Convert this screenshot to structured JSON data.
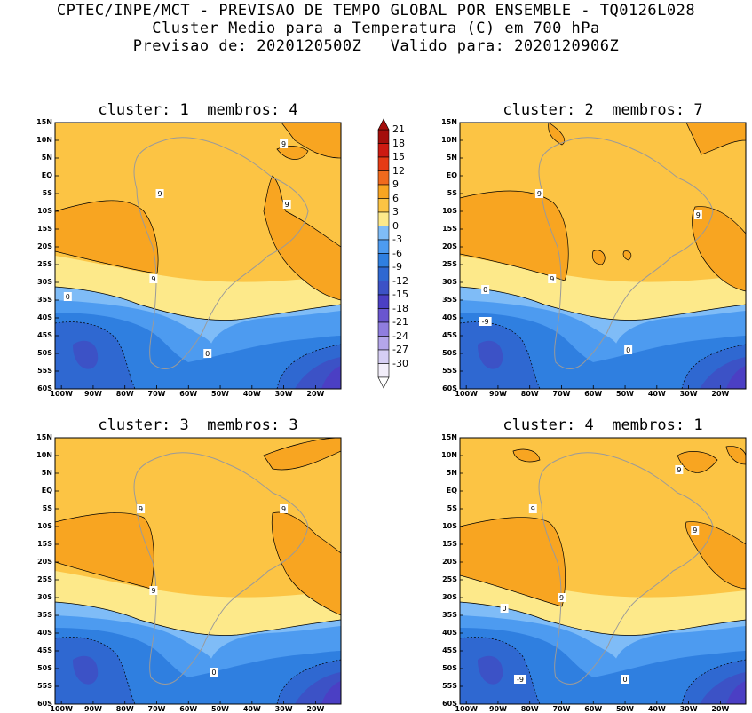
{
  "header": {
    "line1": "CPTEC/INPE/MCT - PREVISAO DE TEMPO GLOBAL POR ENSEMBLE - TQ0126L028",
    "line2": "Cluster Medio para a Temperatura (C) em 700 hPa",
    "line3": "Previsao de: 2020120500Z   Valido para: 2020120906Z"
  },
  "colors": {
    "levels": [
      -30,
      -27,
      -24,
      -21,
      -18,
      -15,
      -12,
      -9,
      -6,
      -3,
      0,
      3,
      6,
      9,
      12,
      15,
      18,
      21
    ],
    "palette": [
      "#f2eefa",
      "#d6cef4",
      "#b4a6ea",
      "#8f7ddf",
      "#6a56cf",
      "#4b3fc4",
      "#3c52c6",
      "#2f68d1",
      "#2f7fe0",
      "#4d9bf0",
      "#7fbcf7",
      "#fde98a",
      "#fcc444",
      "#f8a521",
      "#f06a1d",
      "#e53b15",
      "#cd1a12",
      "#a40e0b"
    ],
    "contour": "#000000",
    "coast": "#9a9a9a"
  },
  "colorbar": {
    "labels": [
      "21",
      "18",
      "15",
      "12",
      "9",
      "6",
      "3",
      "0",
      "-3",
      "-6",
      "-9",
      "-12",
      "-15",
      "-18",
      "-21",
      "-24",
      "-27",
      "-30"
    ]
  },
  "chart_data": [
    {
      "type": "heatmap",
      "title": "cluster: 1  membros: 4",
      "x_ticks": [
        "100W",
        "90W",
        "80W",
        "70W",
        "60W",
        "50W",
        "40W",
        "30W",
        "20W"
      ],
      "y_ticks": [
        "15N",
        "10N",
        "5N",
        "EQ",
        "5S",
        "10S",
        "15S",
        "20S",
        "25S",
        "30S",
        "35S",
        "40S",
        "45S",
        "50S",
        "55S",
        "60S"
      ],
      "x_range_deg_lon": [
        -102,
        -12
      ],
      "y_range_deg_lat": [
        -60,
        15
      ],
      "contour_labels": [
        {
          "text": "9",
          "lon": -69,
          "lat": -5
        },
        {
          "text": "9",
          "lon": -30,
          "lat": 9
        },
        {
          "text": "9",
          "lon": -29,
          "lat": -8
        },
        {
          "text": "9",
          "lon": -71,
          "lat": -29
        },
        {
          "text": "0",
          "lon": -98,
          "lat": -34
        },
        {
          "text": "0",
          "lon": -54,
          "lat": -50
        }
      ]
    },
    {
      "type": "heatmap",
      "title": "cluster: 2  membros: 7",
      "x_ticks": [
        "100W",
        "90W",
        "80W",
        "70W",
        "60W",
        "50W",
        "40W",
        "30W",
        "20W"
      ],
      "y_ticks": [
        "15N",
        "10N",
        "5N",
        "EQ",
        "5S",
        "10S",
        "15S",
        "20S",
        "25S",
        "30S",
        "35S",
        "40S",
        "45S",
        "50S",
        "55S",
        "60S"
      ],
      "x_range_deg_lon": [
        -102,
        -12
      ],
      "y_range_deg_lat": [
        -60,
        15
      ],
      "contour_labels": [
        {
          "text": "9",
          "lon": -77,
          "lat": -5
        },
        {
          "text": "9",
          "lon": -27,
          "lat": -11
        },
        {
          "text": "9",
          "lon": -73,
          "lat": -29
        },
        {
          "text": "0",
          "lon": -94,
          "lat": -32
        },
        {
          "text": "-9",
          "lon": -94,
          "lat": -41
        },
        {
          "text": "0",
          "lon": -49,
          "lat": -49
        }
      ]
    },
    {
      "type": "heatmap",
      "title": "cluster: 3  membros: 3",
      "x_ticks": [
        "100W",
        "90W",
        "80W",
        "70W",
        "60W",
        "50W",
        "40W",
        "30W",
        "20W"
      ],
      "y_ticks": [
        "15N",
        "10N",
        "5N",
        "EQ",
        "5S",
        "10S",
        "15S",
        "20S",
        "25S",
        "30S",
        "35S",
        "40S",
        "45S",
        "50S",
        "55S",
        "60S"
      ],
      "x_range_deg_lon": [
        -102,
        -12
      ],
      "y_range_deg_lat": [
        -60,
        15
      ],
      "contour_labels": [
        {
          "text": "9",
          "lon": -75,
          "lat": -5
        },
        {
          "text": "9",
          "lon": -30,
          "lat": -5
        },
        {
          "text": "9",
          "lon": -71,
          "lat": -28
        },
        {
          "text": "0",
          "lon": -52,
          "lat": -51
        }
      ]
    },
    {
      "type": "heatmap",
      "title": "cluster: 4  membros: 1",
      "x_ticks": [
        "100W",
        "90W",
        "80W",
        "70W",
        "60W",
        "50W",
        "40W",
        "30W",
        "20W"
      ],
      "y_ticks": [
        "15N",
        "10N",
        "5N",
        "EQ",
        "5S",
        "10S",
        "15S",
        "20S",
        "25S",
        "30S",
        "35S",
        "40S",
        "45S",
        "50S",
        "55S",
        "60S"
      ],
      "x_range_deg_lon": [
        -102,
        -12
      ],
      "y_range_deg_lat": [
        -60,
        15
      ],
      "contour_labels": [
        {
          "text": "9",
          "lon": -33,
          "lat": 6
        },
        {
          "text": "9",
          "lon": -79,
          "lat": -5
        },
        {
          "text": "9",
          "lon": -28,
          "lat": -11
        },
        {
          "text": "9",
          "lon": -70,
          "lat": -30
        },
        {
          "text": "0",
          "lon": -88,
          "lat": -33
        },
        {
          "text": "-9",
          "lon": -83,
          "lat": -53
        },
        {
          "text": "0",
          "lon": -50,
          "lat": -53
        }
      ]
    }
  ]
}
